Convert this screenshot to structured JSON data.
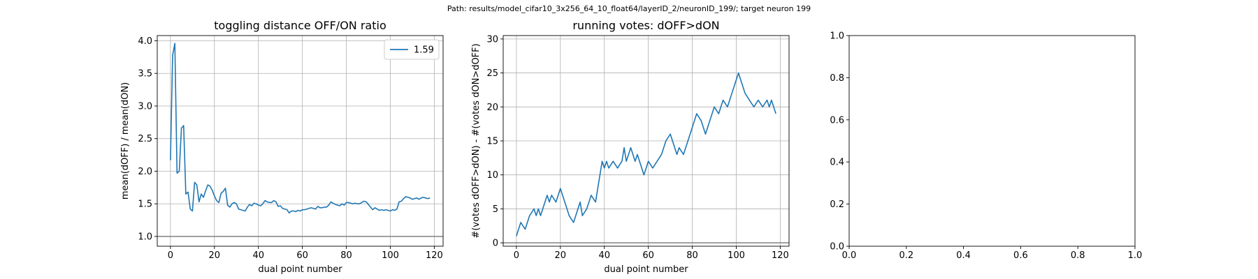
{
  "figure": {
    "suptitle": "Path: results/model_cifar10_3x256_64_10_float64/layerID_2/neuronID_199/; target neuron 199"
  },
  "chart_data": [
    {
      "type": "line",
      "title": "toggling distance OFF/ON ratio",
      "xlabel": "dual point number",
      "ylabel": "mean(dOFF) / mean(dON)",
      "xlim": [
        -6,
        124
      ],
      "ylim": [
        0.85,
        4.08
      ],
      "xticks": [
        0,
        20,
        40,
        60,
        80,
        100,
        120
      ],
      "yticks": [
        1.0,
        1.5,
        2.0,
        2.5,
        3.0,
        3.5,
        4.0
      ],
      "ytick_labels": [
        "1.0",
        "1.5",
        "2.0",
        "2.5",
        "3.0",
        "3.5",
        "4.0"
      ],
      "grid": true,
      "legend": {
        "position": "top-right",
        "entries": [
          "1.59"
        ]
      },
      "hline": {
        "y": 1.0,
        "color": "#808080"
      },
      "series": [
        {
          "name": "1.59",
          "color": "#1f77b4",
          "x": [
            0,
            1,
            2,
            3,
            4,
            5,
            6,
            7,
            8,
            9,
            10,
            11,
            12,
            13,
            14,
            15,
            16,
            17,
            18,
            19,
            20,
            21,
            22,
            23,
            24,
            25,
            26,
            27,
            28,
            29,
            30,
            31,
            32,
            33,
            34,
            35,
            36,
            37,
            38,
            39,
            40,
            41,
            42,
            43,
            44,
            45,
            46,
            47,
            48,
            49,
            50,
            51,
            52,
            53,
            54,
            55,
            56,
            57,
            58,
            59,
            60,
            61,
            62,
            63,
            64,
            65,
            66,
            67,
            68,
            69,
            70,
            71,
            72,
            73,
            74,
            75,
            76,
            77,
            78,
            79,
            80,
            81,
            82,
            83,
            84,
            85,
            86,
            87,
            88,
            89,
            90,
            91,
            92,
            93,
            94,
            95,
            96,
            97,
            98,
            99,
            100,
            101,
            102,
            103,
            104,
            105,
            106,
            107,
            108,
            109,
            110,
            111,
            112,
            113,
            114,
            115,
            116,
            117,
            118
          ],
          "values": [
            2.17,
            3.78,
            3.96,
            1.97,
            2.0,
            2.66,
            2.7,
            1.65,
            1.68,
            1.42,
            1.39,
            1.83,
            1.79,
            1.53,
            1.65,
            1.6,
            1.7,
            1.79,
            1.77,
            1.71,
            1.62,
            1.55,
            1.52,
            1.66,
            1.69,
            1.74,
            1.48,
            1.45,
            1.5,
            1.52,
            1.5,
            1.42,
            1.41,
            1.4,
            1.39,
            1.45,
            1.49,
            1.47,
            1.51,
            1.5,
            1.48,
            1.47,
            1.5,
            1.55,
            1.53,
            1.52,
            1.52,
            1.55,
            1.53,
            1.46,
            1.47,
            1.43,
            1.42,
            1.41,
            1.36,
            1.39,
            1.39,
            1.38,
            1.4,
            1.39,
            1.41,
            1.41,
            1.42,
            1.43,
            1.44,
            1.43,
            1.42,
            1.46,
            1.44,
            1.44,
            1.45,
            1.45,
            1.48,
            1.53,
            1.51,
            1.49,
            1.48,
            1.47,
            1.5,
            1.48,
            1.52,
            1.52,
            1.51,
            1.5,
            1.51,
            1.5,
            1.5,
            1.52,
            1.54,
            1.53,
            1.49,
            1.45,
            1.41,
            1.44,
            1.42,
            1.4,
            1.41,
            1.4,
            1.41,
            1.4,
            1.39,
            1.41,
            1.4,
            1.42,
            1.53,
            1.54,
            1.58,
            1.61,
            1.6,
            1.59,
            1.57,
            1.58,
            1.59,
            1.57,
            1.59,
            1.6,
            1.59,
            1.58,
            1.59
          ]
        }
      ]
    },
    {
      "type": "line",
      "title": "running votes: dOFF>dON",
      "xlabel": "dual point number",
      "ylabel": "#(votes dOFF>dON) - #(votes dON>dOFF)",
      "xlim": [
        -6,
        124
      ],
      "ylim": [
        -0.5,
        30.5
      ],
      "xticks": [
        0,
        20,
        40,
        60,
        80,
        100,
        120
      ],
      "yticks": [
        0,
        5,
        10,
        15,
        20,
        25,
        30
      ],
      "ytick_labels": [
        "0",
        "5",
        "10",
        "15",
        "20",
        "25",
        "30"
      ],
      "grid": true,
      "hline": {
        "y": 0,
        "color": "#808080"
      },
      "series": [
        {
          "color": "#1f77b4",
          "x": [
            0,
            2,
            4,
            6,
            8,
            9,
            10,
            11,
            12,
            13,
            14,
            15,
            16,
            18,
            20,
            22,
            24,
            26,
            28,
            29,
            30,
            32,
            34,
            36,
            37,
            38,
            39,
            40,
            41,
            42,
            44,
            46,
            48,
            49,
            50,
            51,
            52,
            54,
            55,
            56,
            57,
            58,
            59,
            60,
            62,
            64,
            66,
            68,
            70,
            71,
            72,
            73,
            74,
            76,
            78,
            80,
            82,
            84,
            85,
            86,
            87,
            88,
            90,
            92,
            94,
            96,
            98,
            99,
            100,
            101,
            102,
            103,
            104,
            106,
            108,
            110,
            112,
            114,
            115,
            116,
            118
          ],
          "values": [
            1,
            3,
            2,
            4,
            5,
            4,
            5,
            4,
            5,
            6,
            7,
            6,
            7,
            6,
            8,
            6,
            4,
            3,
            5,
            6,
            4,
            5,
            7,
            6,
            8,
            10,
            12,
            11,
            12,
            11,
            12,
            11,
            12,
            14,
            12,
            13,
            14,
            12,
            13,
            12,
            11,
            10,
            11,
            12,
            11,
            12,
            13,
            15,
            16,
            15,
            14,
            13,
            14,
            13,
            15,
            17,
            19,
            18,
            17,
            16,
            17,
            18,
            20,
            19,
            21,
            20,
            22,
            23,
            24,
            25,
            24,
            23,
            22,
            21,
            20,
            21,
            20,
            21,
            20,
            21,
            19
          ]
        }
      ]
    },
    {
      "type": "line",
      "title": "",
      "xlabel": "",
      "ylabel": "",
      "xlim": [
        0,
        1
      ],
      "ylim": [
        0,
        1
      ],
      "xticks": [
        0.0,
        0.2,
        0.4,
        0.6,
        0.8,
        1.0
      ],
      "yticks": [
        0.0,
        0.2,
        0.4,
        0.6,
        0.8,
        1.0
      ],
      "xtick_labels": [
        "0.0",
        "0.2",
        "0.4",
        "0.6",
        "0.8",
        "1.0"
      ],
      "ytick_labels": [
        "0.0",
        "0.2",
        "0.4",
        "0.6",
        "0.8",
        "1.0"
      ],
      "grid": false,
      "series": []
    }
  ]
}
